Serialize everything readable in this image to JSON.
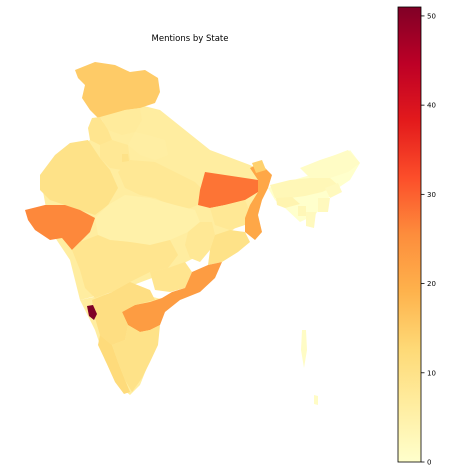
{
  "chart_data": {
    "type": "choropleth",
    "title": "Mentions by State",
    "colormap": "YlOrRd",
    "color_stops": [
      "#ffffcc",
      "#ffeda0",
      "#fed976",
      "#feb24c",
      "#fd8d3c",
      "#fc4e2a",
      "#e31a1c",
      "#bd0026",
      "#800026"
    ],
    "colorbar": {
      "range": [
        0,
        51
      ],
      "ticks": [
        0,
        10,
        20,
        30,
        40,
        50
      ],
      "tick_labels": [
        "0",
        "10",
        "20",
        "30",
        "40",
        "50"
      ],
      "placement": "right"
    },
    "regions": [
      {
        "name": "Jammu and Kashmir",
        "value": 15
      },
      {
        "name": "Himachal Pradesh",
        "value": 7
      },
      {
        "name": "Punjab",
        "value": 9
      },
      {
        "name": "Uttarakhand",
        "value": 6
      },
      {
        "name": "Haryana",
        "value": 8
      },
      {
        "name": "Delhi",
        "value": 10
      },
      {
        "name": "Rajasthan",
        "value": 10
      },
      {
        "name": "Uttar Pradesh",
        "value": 8
      },
      {
        "name": "Bihar",
        "value": 28
      },
      {
        "name": "Gujarat",
        "value": 26
      },
      {
        "name": "Madhya Pradesh",
        "value": 5
      },
      {
        "name": "Jharkhand",
        "value": 8
      },
      {
        "name": "West Bengal",
        "value": 21
      },
      {
        "name": "Chhattisgarh",
        "value": 8
      },
      {
        "name": "Odisha",
        "value": 10
      },
      {
        "name": "Maharashtra",
        "value": 9
      },
      {
        "name": "Telangana",
        "value": 9
      },
      {
        "name": "Andhra Pradesh",
        "value": 23
      },
      {
        "name": "Goa",
        "value": 51
      },
      {
        "name": "Karnataka",
        "value": 11
      },
      {
        "name": "Kerala",
        "value": 12
      },
      {
        "name": "Tamil Nadu",
        "value": 10
      },
      {
        "name": "Sikkim",
        "value": 14
      },
      {
        "name": "Assam",
        "value": 3
      },
      {
        "name": "Arunachal Pradesh",
        "value": 1
      },
      {
        "name": "Meghalaya",
        "value": 4
      },
      {
        "name": "Nagaland",
        "value": 2
      },
      {
        "name": "Manipur",
        "value": 2
      },
      {
        "name": "Mizoram",
        "value": 2
      },
      {
        "name": "Tripura",
        "value": 3
      },
      {
        "name": "Andaman and Nicobar Islands",
        "value": 1
      }
    ]
  }
}
